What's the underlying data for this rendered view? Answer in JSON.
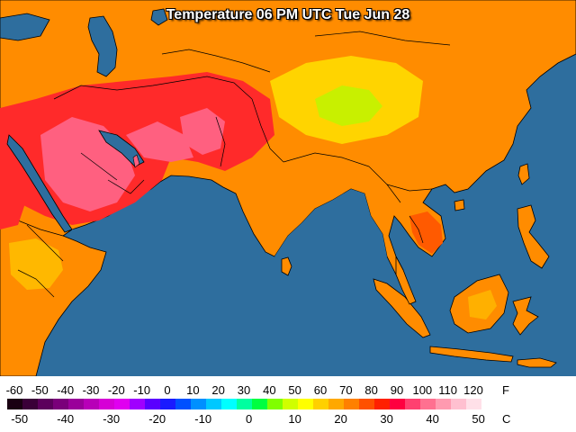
{
  "title": "Temperature 06 PM UTC Tue Jun 28",
  "legend": {
    "fahrenheit_unit": "F",
    "celsius_unit": "C",
    "fahrenheit_ticks": [
      "-60",
      "-50",
      "-40",
      "-30",
      "-20",
      "-10",
      "0",
      "10",
      "20",
      "30",
      "40",
      "50",
      "60",
      "70",
      "80",
      "90",
      "100",
      "110",
      "120"
    ],
    "celsius_ticks": [
      "-50",
      "-40",
      "-30",
      "-20",
      "-10",
      "0",
      "10",
      "20",
      "30",
      "40",
      "50"
    ],
    "colors": [
      "#1a0012",
      "#3a0038",
      "#5c005c",
      "#7a007a",
      "#9a009a",
      "#b800b8",
      "#d600d6",
      "#e000f0",
      "#a000ff",
      "#5a00ff",
      "#1a1aff",
      "#0050ff",
      "#0090ff",
      "#00c8ff",
      "#00ffff",
      "#00ffa0",
      "#00ff40",
      "#80ff00",
      "#d0ff00",
      "#ffff00",
      "#ffd000",
      "#ffa800",
      "#ff8000",
      "#ff5000",
      "#ff2000",
      "#ff0040",
      "#ff4070",
      "#ff7090",
      "#ff9ab0",
      "#ffc0d0",
      "#ffe0e8",
      "#ffffff"
    ]
  },
  "map": {
    "ocean_color": "#2e6e9e",
    "hot_color": "#ff4a6a",
    "warm_color": "#ff8a00",
    "mild_color": "#ffb800",
    "cool_color": "#c8f000"
  }
}
